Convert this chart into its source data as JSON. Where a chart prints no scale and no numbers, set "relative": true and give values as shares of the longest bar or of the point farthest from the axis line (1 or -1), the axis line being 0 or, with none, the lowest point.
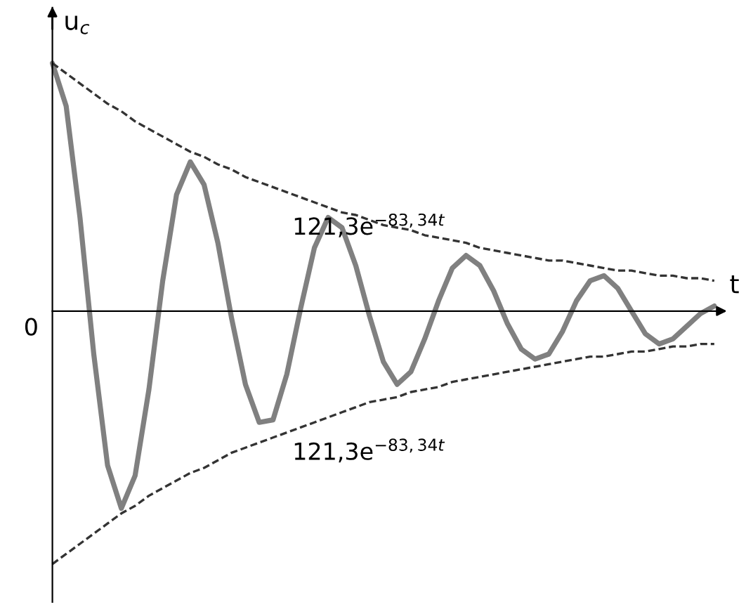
{
  "chart_data": {
    "type": "line",
    "relative": true,
    "xlabel": "t",
    "ylabel": "u$_{c}$",
    "categories": [
      null,
      null,
      null,
      null,
      null,
      null,
      null,
      null,
      null,
      null,
      null,
      null,
      null,
      null,
      null,
      null,
      null,
      null,
      null,
      null,
      null,
      null,
      null,
      null,
      null,
      null,
      null,
      null,
      null,
      null,
      null,
      null,
      null,
      null,
      null,
      null,
      null,
      null,
      null,
      null,
      null,
      null,
      null,
      null,
      null,
      null,
      null,
      null,
      null
    ],
    "series": [
      {
        "color": "#808080",
        "line_style": "solid",
        "values": [
          0.98,
          0.81,
          0.37,
          -0.17,
          -0.61,
          -0.78,
          -0.65,
          -0.31,
          0.12,
          0.46,
          0.59,
          0.5,
          0.27,
          -0.03,
          -0.29,
          -0.44,
          -0.43,
          -0.25,
          0.01,
          0.25,
          0.37,
          0.33,
          0.18,
          -0.02,
          -0.2,
          -0.29,
          -0.24,
          -0.11,
          0.04,
          0.17,
          0.22,
          0.18,
          0.08,
          -0.05,
          -0.15,
          -0.19,
          -0.17,
          -0.08,
          0.04,
          0.12,
          0.14,
          0.09,
          0.0,
          -0.09,
          -0.13,
          -0.11,
          -0.06,
          -0.01,
          0.02
        ]
      },
      {
        "color": "#333333",
        "line_style": "dashed",
        "values": [
          0.98,
          0.94,
          0.9,
          0.86,
          0.82,
          0.79,
          0.75,
          0.72,
          0.69,
          0.66,
          0.63,
          0.61,
          0.58,
          0.56,
          0.53,
          0.51,
          0.49,
          0.47,
          0.45,
          0.43,
          0.41,
          0.39,
          0.38,
          0.36,
          0.34,
          0.33,
          0.32,
          0.3,
          0.29,
          0.28,
          0.27,
          0.25,
          0.24,
          0.23,
          0.22,
          0.21,
          0.2,
          0.2,
          0.19,
          0.18,
          0.17,
          0.16,
          0.16,
          0.15,
          0.14,
          0.14,
          0.13,
          0.13,
          0.12
        ]
      },
      {
        "color": "#333333",
        "line_style": "dashed",
        "values": [
          -1.0,
          -0.96,
          -0.92,
          -0.88,
          -0.84,
          -0.8,
          -0.77,
          -0.73,
          -0.7,
          -0.67,
          -0.64,
          -0.62,
          -0.59,
          -0.56,
          -0.54,
          -0.52,
          -0.5,
          -0.48,
          -0.46,
          -0.44,
          -0.42,
          -0.4,
          -0.38,
          -0.36,
          -0.35,
          -0.34,
          -0.32,
          -0.31,
          -0.3,
          -0.28,
          -0.27,
          -0.26,
          -0.25,
          -0.24,
          -0.23,
          -0.22,
          -0.21,
          -0.2,
          -0.19,
          -0.18,
          -0.18,
          -0.17,
          -0.16,
          -0.16,
          -0.15,
          -0.14,
          -0.14,
          -0.13,
          -0.13
        ]
      }
    ],
    "annotations": [
      "121,3e$^{−83,34t}$",
      "121,3e$^{−83,34t}$",
      "0"
    ]
  }
}
